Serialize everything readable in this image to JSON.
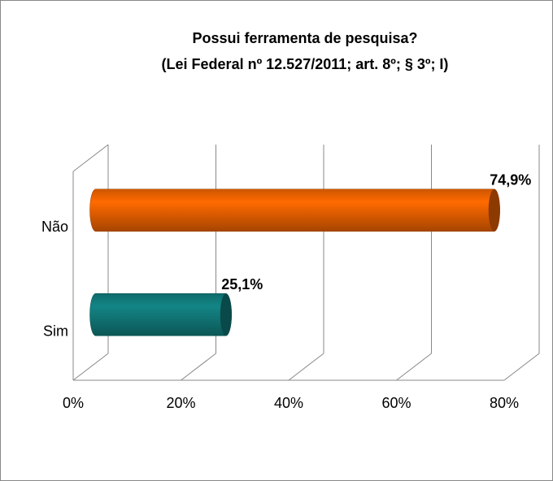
{
  "chart_data": {
    "type": "bar3d_horizontal",
    "title": "Possui ferramenta de pesquisa?",
    "subtitle": "(Lei Federal nº 12.527/2011; art. 8º; § 3º; I)",
    "categories": [
      "Não",
      "Sim"
    ],
    "values": [
      74.9,
      25.1
    ],
    "value_labels": [
      "74,9%",
      "25,1%"
    ],
    "colors": [
      "#ff6a00",
      "#138585"
    ],
    "xlim": [
      0,
      80
    ],
    "xticks": [
      {
        "value": 0,
        "label": "0%"
      },
      {
        "value": 20,
        "label": "20%"
      },
      {
        "value": 40,
        "label": "40%"
      },
      {
        "value": 60,
        "label": "60%"
      },
      {
        "value": 80,
        "label": "80%"
      }
    ],
    "grid": true
  }
}
